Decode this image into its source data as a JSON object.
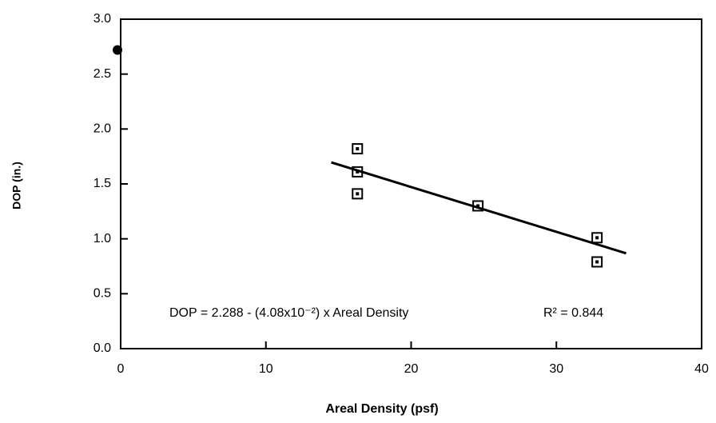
{
  "chart_data": {
    "type": "scatter",
    "xlabel": "Areal Density (psf)",
    "ylabel": "DOP (in.)",
    "annotation": "DOP =  2.288 - (4.08x10⁻²) x Areal Density",
    "annotation2": "R² = 0.844",
    "series": [
      {
        "color": "#000000",
        "x": [
          16.3,
          16.3,
          16.3,
          24.6,
          32.8,
          32.8
        ],
        "values": [
          1.82,
          1.61,
          1.41,
          1.3,
          1.01,
          0.79
        ]
      }
    ],
    "outlier": {
      "x": 0,
      "value": 2.72
    },
    "fit": {
      "x": [
        14.5,
        34.8
      ],
      "values": [
        1.696,
        0.868
      ]
    },
    "xlim": [
      0,
      40
    ],
    "xticks": [
      0,
      10,
      20,
      30,
      40
    ],
    "ylim": [
      0,
      3
    ],
    "yticks": [
      {
        "value": 0,
        "label": "0.0"
      },
      {
        "value": 0.5,
        "label": "0.5"
      },
      {
        "value": 1,
        "label": "1.0"
      },
      {
        "value": 1.5,
        "label": "1.5"
      },
      {
        "value": 2,
        "label": "2.0"
      },
      {
        "value": 2.5,
        "label": "2.5"
      },
      {
        "value": 3,
        "label": "3.0"
      }
    ],
    "grid": false
  }
}
